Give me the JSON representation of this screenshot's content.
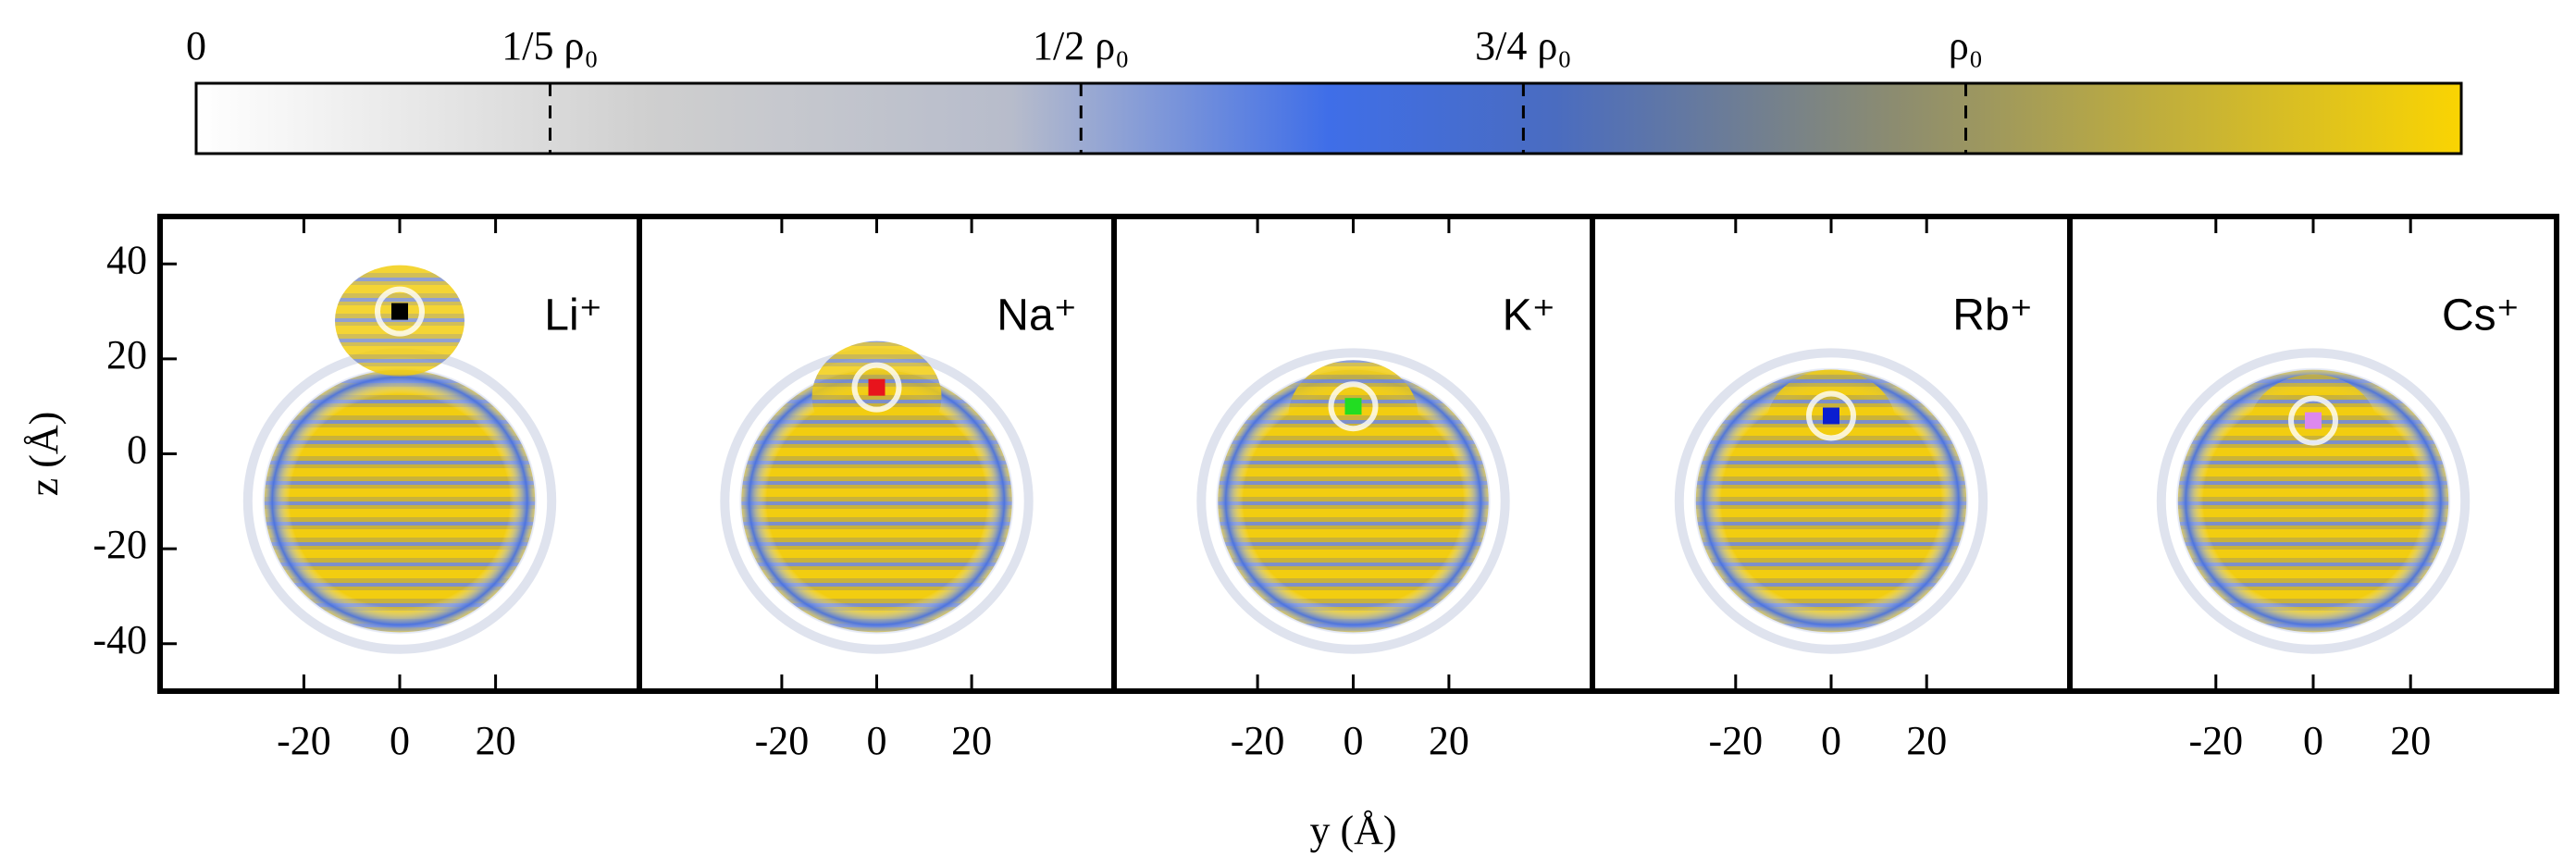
{
  "chart_data": [
    {
      "type": "colorbar",
      "clim": [
        0,
        1.28
      ],
      "ticks": [
        0,
        {
          "value": 0.2,
          "label": "1/5 ρ₀"
        },
        {
          "value": 0.5,
          "label": "1/2 ρ₀"
        },
        {
          "value": 0.75,
          "label": "3/4 ρ₀"
        },
        {
          "value": 1,
          "label": "ρ₀"
        }
      ]
    },
    {
      "type": "density",
      "ion": "Li⁺",
      "ion_color": "#000000",
      "label_color": "#000000",
      "ion_y": 0,
      "ion_z": 30,
      "xlim": [
        -50,
        50
      ],
      "ylim": [
        -50,
        50
      ],
      "xticks": [
        -20,
        0,
        20
      ],
      "yticks": [
        40,
        20,
        0,
        -20,
        -40
      ],
      "y_label": "z (Å)"
    },
    {
      "type": "density",
      "ion": "Na⁺",
      "ion_color": "#e8141c",
      "label_color": "#e8141c",
      "ion_y": 0,
      "ion_z": 14,
      "xlim": [
        -50,
        50
      ],
      "ylim": [
        -50,
        50
      ],
      "xticks": [
        -20,
        0,
        20
      ]
    },
    {
      "type": "density",
      "ion": "K⁺",
      "ion_color": "#22dd22",
      "label_color": "#009e73",
      "ion_y": 0,
      "ion_z": 10,
      "xlim": [
        -50,
        50
      ],
      "ylim": [
        -50,
        50
      ],
      "xticks": [
        -20,
        0,
        20
      ],
      "x_label": "y (Å)"
    },
    {
      "type": "density",
      "ion": "Rb⁺",
      "ion_color": "#0a1ed0",
      "label_color": "#0072b2",
      "ion_y": 0,
      "ion_z": 8,
      "xlim": [
        -50,
        50
      ],
      "ylim": [
        -50,
        50
      ],
      "xticks": [
        -20,
        0,
        20
      ]
    },
    {
      "type": "density",
      "ion": "Cs⁺",
      "ion_color": "#dd88ee",
      "label_color": "#a020f0",
      "ion_y": 0,
      "ion_z": 7,
      "xlim": [
        -50,
        50
      ],
      "ylim": [
        -50,
        50
      ],
      "xticks": [
        -20,
        0,
        20
      ]
    }
  ]
}
